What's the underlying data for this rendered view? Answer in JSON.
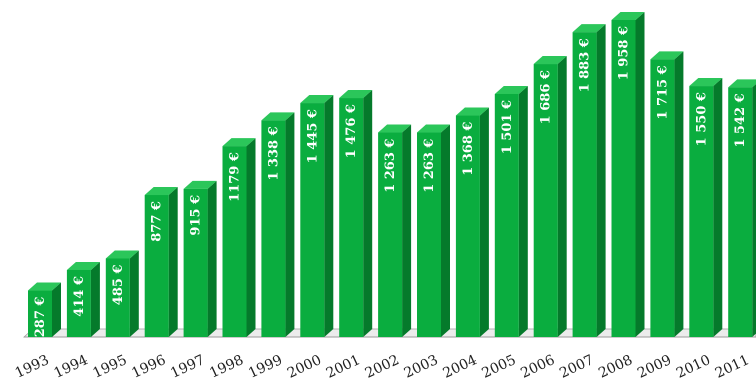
{
  "chart_data": {
    "type": "bar",
    "title": "",
    "xlabel": "",
    "ylabel": "",
    "categories": [
      "1993",
      "1994",
      "1995",
      "1996",
      "1997",
      "1998",
      "1999",
      "2000",
      "2001",
      "2002",
      "2003",
      "2004",
      "2005",
      "2006",
      "2007",
      "2008",
      "2009",
      "2010",
      "2011"
    ],
    "values": [
      287,
      414,
      485,
      877,
      915,
      1179,
      1338,
      1445,
      1476,
      1263,
      1263,
      1368,
      1501,
      1686,
      1883,
      1958,
      1715,
      1550,
      1542
    ],
    "data_labels": [
      "287 €",
      "414 €",
      "485 €",
      "877 €",
      "915 €",
      "1179 €",
      "1 338 €",
      "1 445 €",
      "1 476 €",
      "1 263 €",
      "1 263 €",
      "1 368 €",
      "1 501 €",
      "1 686 €",
      "1 883 €",
      "1 958 €",
      "1 715 €",
      "1 550 €",
      "1 542 €"
    ],
    "ylim": [
      0,
      2000
    ],
    "grid": false,
    "legend": "none",
    "style": "3d-bar",
    "colors": {
      "bar_front": "#0aad3f",
      "bar_side": "#057a2b",
      "bar_top": "#2bc65a",
      "floor": "#9a9a9a"
    }
  }
}
